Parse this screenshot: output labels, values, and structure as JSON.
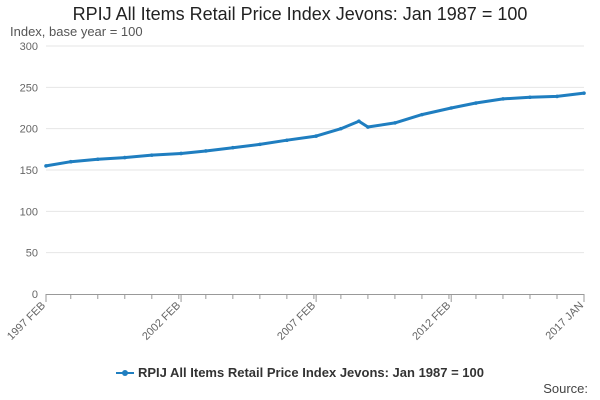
{
  "chart_data": {
    "type": "line",
    "title": "RPIJ All Items Retail Price Index Jevons: Jan 1987 = 100",
    "ylabel": "Index, base year = 100",
    "xlabel": "",
    "ylim": [
      0,
      300
    ],
    "y_ticks": [
      "0",
      "50",
      "100",
      "150",
      "200",
      "250",
      "300"
    ],
    "x_tick_labels": [
      {
        "label": "1997 FEB",
        "date": "1997-02"
      },
      {
        "label": "2002 FEB",
        "date": "2002-02"
      },
      {
        "label": "2007 FEB",
        "date": "2007-02"
      },
      {
        "label": "2012 FEB",
        "date": "2012-02"
      },
      {
        "label": "2017 JAN",
        "date": "2017-01"
      }
    ],
    "grid": true,
    "legend_position": "bottom",
    "series": [
      {
        "name": "RPIJ All Items Retail Price Index Jevons: Jan 1987 = 100",
        "color": "#1f7ec0",
        "x": [
          "1997-02",
          "1998-01",
          "1999-01",
          "2000-01",
          "2001-01",
          "2002-02",
          "2003-01",
          "2004-01",
          "2005-01",
          "2006-01",
          "2007-02",
          "2008-01",
          "2008-09",
          "2009-01",
          "2010-01",
          "2011-01",
          "2012-02",
          "2013-01",
          "2014-01",
          "2015-01",
          "2016-01",
          "2017-01"
        ],
        "values": [
          155,
          160,
          163,
          165,
          168,
          170,
          173,
          177,
          181,
          186,
          191,
          200,
          209,
          202,
          207,
          217,
          225,
          231,
          236,
          238,
          239,
          243
        ]
      }
    ]
  },
  "source_label": "Source:"
}
